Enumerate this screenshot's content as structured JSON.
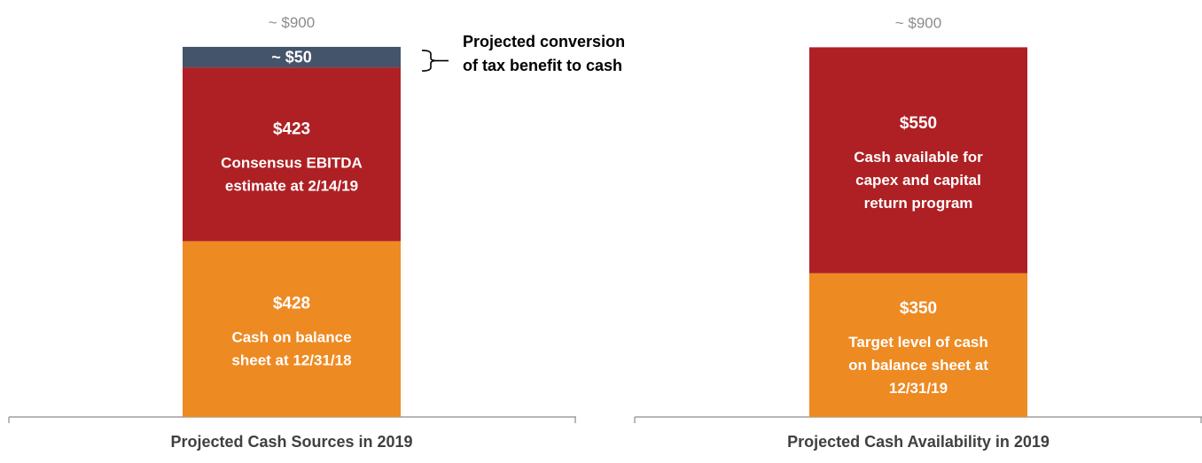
{
  "chart_data": [
    {
      "type": "bar",
      "stacked": true,
      "categories": [
        "Projected Cash Sources in 2019"
      ],
      "xlabel": "Projected Cash Sources in 2019",
      "total_label": "~ $900",
      "segments": [
        {
          "key": "cash",
          "value": 428,
          "value_label": "$428",
          "text": [
            "Cash on balance",
            "sheet at 12/31/18"
          ],
          "color": "#EE8A22"
        },
        {
          "key": "ebitda",
          "value": 423,
          "value_label": "$423",
          "text": [
            "Consensus EBITDA",
            "estimate at 2/14/19"
          ],
          "color": "#AE2024"
        },
        {
          "key": "tax",
          "value": 50,
          "value_label": "~ $50",
          "text": [],
          "color": "#44546A"
        }
      ],
      "annotation": [
        "Projected conversion",
        "of tax benefit to cash"
      ]
    },
    {
      "type": "bar",
      "stacked": true,
      "categories": [
        "Projected Cash Availability in 2019"
      ],
      "xlabel": "Projected Cash Availability in 2019",
      "total_label": "~ $900",
      "segments": [
        {
          "key": "target",
          "value": 350,
          "value_label": "$350",
          "text": [
            "Target level of cash",
            "on balance sheet at",
            "12/31/19"
          ],
          "color": "#EE8A22"
        },
        {
          "key": "available",
          "value": 550,
          "value_label": "$550",
          "text": [
            "Cash available for",
            "capex and capital",
            "return program"
          ],
          "color": "#AE2024"
        }
      ]
    }
  ],
  "colors": {
    "orange": "#EE8A22",
    "red": "#AE2024",
    "slate": "#44546A",
    "total_label": "#8C8C8C",
    "axis_label": "#404040"
  }
}
